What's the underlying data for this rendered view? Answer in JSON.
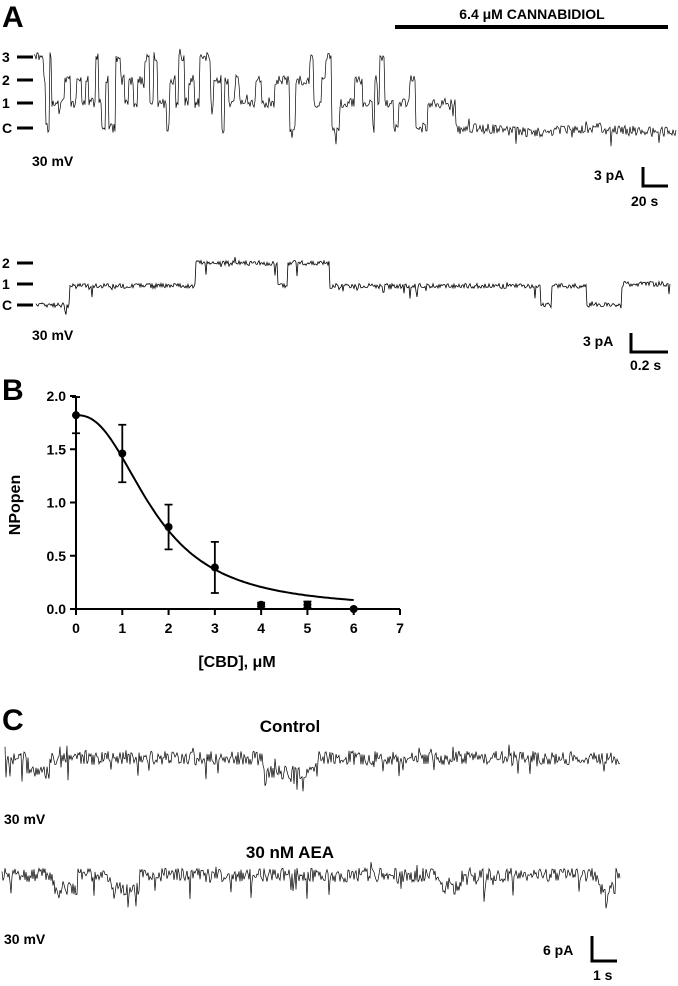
{
  "panels": {
    "a": "A",
    "b": "B",
    "c": "C"
  },
  "panel_a": {
    "drug_bar_label": "6.4 μM CANNABIDIOL",
    "top_trace": {
      "level_labels": [
        "3",
        "2",
        "1",
        "C"
      ],
      "voltage": "30 mV",
      "scale_current": "3 pA",
      "scale_time": "20 s"
    },
    "bottom_trace": {
      "level_labels": [
        "2",
        "1",
        "C"
      ],
      "voltage": "30 mV",
      "scale_current": "3 pA",
      "scale_time": "0.2 s"
    }
  },
  "panel_c": {
    "control_label": "Control",
    "aea_label": "30 nM AEA",
    "voltage_1": "30 mV",
    "voltage_2": "30 mV",
    "scale_current": "6 pA",
    "scale_time": "1 s"
  },
  "chart_data": {
    "type": "scatter",
    "xlabel": "[CBD], μM",
    "ylabel": "NPopen",
    "xlim": [
      0,
      7
    ],
    "ylim": [
      0,
      2.0
    ],
    "x_ticks": [
      "0",
      "1",
      "2",
      "3",
      "4",
      "5",
      "6",
      "7"
    ],
    "y_ticks": [
      "0.0",
      "0.5",
      "1.0",
      "1.5",
      "2.0"
    ],
    "x": [
      0,
      1,
      2,
      3,
      4,
      5,
      6
    ],
    "y": [
      1.82,
      1.46,
      0.77,
      0.39,
      0.04,
      0.04,
      0.0
    ],
    "error": [
      0.17,
      0.27,
      0.21,
      0.24,
      0.02,
      0.03,
      0.0
    ],
    "fit": {
      "type": "sigmoid",
      "top": 1.82,
      "ic50": 1.7,
      "hill": 2.4
    },
    "grid": false
  }
}
